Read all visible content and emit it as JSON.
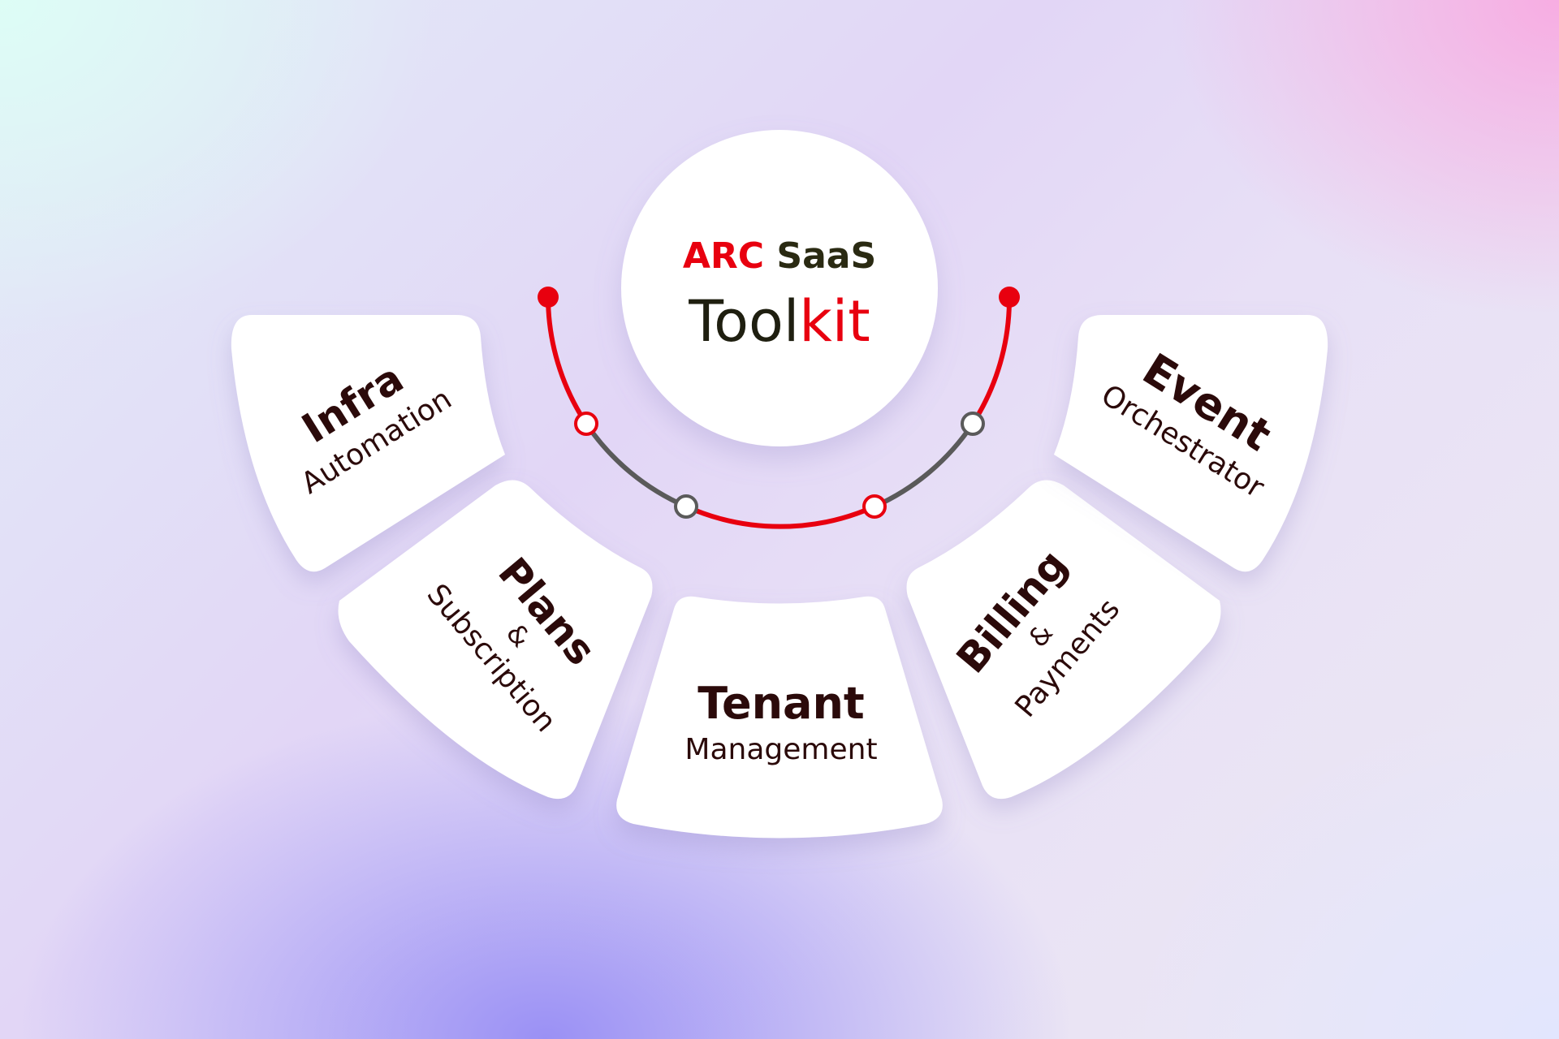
{
  "center": {
    "brand_arc": "ARC",
    "brand_saas": "SaaS",
    "product_part1": "Tool",
    "product_part2": "kit"
  },
  "segments": [
    {
      "id": "infra",
      "title": "Infra",
      "subtitle": "Automation"
    },
    {
      "id": "plans",
      "title": "Plans",
      "connector": "&",
      "subtitle": "Subscription"
    },
    {
      "id": "tenant",
      "title": "Tenant",
      "subtitle": "Management"
    },
    {
      "id": "billing",
      "title": "Billing",
      "connector": "&",
      "subtitle": "Payments"
    },
    {
      "id": "event",
      "title": "Event",
      "subtitle": "Orchestrator"
    }
  ],
  "colors": {
    "accent_red": "#e8000f",
    "dark_text": "#2b0a0a",
    "dark_olive": "#1f1f10",
    "connector_gray": "#5a5a5a",
    "card_bg": "#ffffff"
  }
}
